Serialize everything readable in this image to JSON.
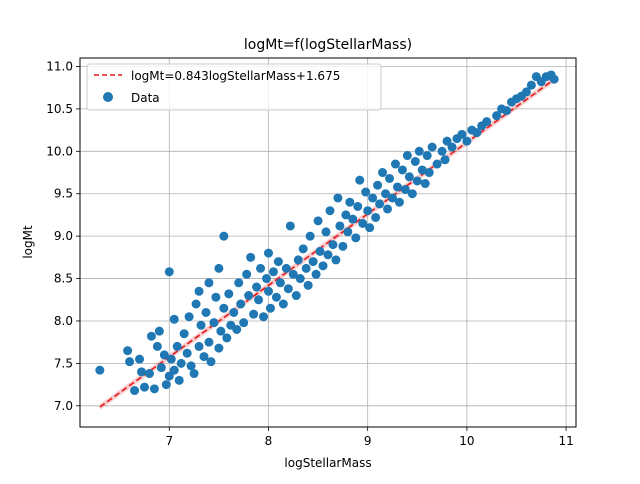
{
  "chart_data": {
    "type": "scatter",
    "title": "logMt=f(logStellarMass)",
    "xlabel": "logStellarMass",
    "ylabel": "logMt",
    "xlim": [
      6.1,
      11.1
    ],
    "ylim": [
      6.75,
      11.1
    ],
    "xticks": [
      "7",
      "8",
      "9",
      "10",
      "11"
    ],
    "yticks": [
      "7.0",
      "7.5",
      "8.0",
      "8.5",
      "9.0",
      "9.5",
      "10.0",
      "10.5",
      "11.0"
    ],
    "grid": true,
    "legend_position": "top-left",
    "fit": {
      "label": "logMt=0.843logStellarMass+1.675",
      "slope": 0.843,
      "intercept": 1.675,
      "x_range": [
        6.3,
        10.9
      ],
      "color": "#e41a1c",
      "style": "dashed"
    },
    "series": [
      {
        "name": "Data",
        "color": "#1f77b4",
        "points": [
          [
            6.3,
            7.42
          ],
          [
            6.58,
            7.65
          ],
          [
            6.6,
            7.52
          ],
          [
            6.65,
            7.18
          ],
          [
            6.7,
            7.55
          ],
          [
            6.72,
            7.4
          ],
          [
            6.75,
            7.22
          ],
          [
            6.8,
            7.38
          ],
          [
            6.82,
            7.82
          ],
          [
            6.85,
            7.2
          ],
          [
            6.88,
            7.7
          ],
          [
            6.9,
            7.88
          ],
          [
            6.92,
            7.45
          ],
          [
            6.95,
            7.6
          ],
          [
            6.97,
            7.25
          ],
          [
            7.0,
            8.58
          ],
          [
            7.0,
            7.35
          ],
          [
            7.02,
            7.55
          ],
          [
            7.05,
            7.42
          ],
          [
            7.05,
            8.02
          ],
          [
            7.08,
            7.7
          ],
          [
            7.1,
            7.3
          ],
          [
            7.12,
            7.5
          ],
          [
            7.15,
            7.85
          ],
          [
            7.18,
            7.62
          ],
          [
            7.2,
            8.05
          ],
          [
            7.22,
            7.47
          ],
          [
            7.25,
            7.38
          ],
          [
            7.27,
            8.2
          ],
          [
            7.3,
            7.7
          ],
          [
            7.3,
            8.35
          ],
          [
            7.32,
            7.95
          ],
          [
            7.35,
            7.58
          ],
          [
            7.37,
            8.1
          ],
          [
            7.4,
            7.75
          ],
          [
            7.4,
            8.45
          ],
          [
            7.42,
            7.52
          ],
          [
            7.45,
            7.98
          ],
          [
            7.47,
            8.28
          ],
          [
            7.5,
            7.68
          ],
          [
            7.5,
            8.62
          ],
          [
            7.52,
            7.88
          ],
          [
            7.55,
            8.15
          ],
          [
            7.55,
            9.0
          ],
          [
            7.58,
            7.8
          ],
          [
            7.6,
            8.32
          ],
          [
            7.62,
            7.95
          ],
          [
            7.65,
            8.1
          ],
          [
            7.68,
            7.9
          ],
          [
            7.7,
            8.45
          ],
          [
            7.72,
            8.2
          ],
          [
            7.75,
            7.98
          ],
          [
            7.78,
            8.55
          ],
          [
            7.8,
            8.3
          ],
          [
            7.82,
            8.75
          ],
          [
            7.85,
            8.08
          ],
          [
            7.88,
            8.4
          ],
          [
            7.9,
            8.25
          ],
          [
            7.92,
            8.62
          ],
          [
            7.95,
            8.05
          ],
          [
            7.98,
            8.5
          ],
          [
            8.0,
            8.8
          ],
          [
            8.0,
            8.35
          ],
          [
            8.02,
            8.15
          ],
          [
            8.05,
            8.58
          ],
          [
            8.08,
            8.28
          ],
          [
            8.1,
            8.7
          ],
          [
            8.12,
            8.45
          ],
          [
            8.15,
            8.2
          ],
          [
            8.18,
            8.62
          ],
          [
            8.2,
            8.38
          ],
          [
            8.22,
            9.12
          ],
          [
            8.25,
            8.55
          ],
          [
            8.28,
            8.3
          ],
          [
            8.3,
            8.72
          ],
          [
            8.32,
            8.5
          ],
          [
            8.35,
            8.85
          ],
          [
            8.38,
            8.62
          ],
          [
            8.4,
            8.42
          ],
          [
            8.42,
            9.0
          ],
          [
            8.45,
            8.7
          ],
          [
            8.48,
            8.55
          ],
          [
            8.5,
            9.18
          ],
          [
            8.52,
            8.82
          ],
          [
            8.55,
            8.65
          ],
          [
            8.58,
            9.05
          ],
          [
            8.6,
            8.78
          ],
          [
            8.62,
            9.3
          ],
          [
            8.65,
            8.9
          ],
          [
            8.68,
            8.72
          ],
          [
            8.7,
            9.45
          ],
          [
            8.72,
            9.12
          ],
          [
            8.75,
            8.88
          ],
          [
            8.78,
            9.25
          ],
          [
            8.8,
            9.05
          ],
          [
            8.82,
            9.4
          ],
          [
            8.85,
            9.2
          ],
          [
            8.88,
            8.98
          ],
          [
            8.9,
            9.35
          ],
          [
            8.92,
            9.66
          ],
          [
            8.95,
            9.15
          ],
          [
            8.98,
            9.52
          ],
          [
            9.0,
            9.3
          ],
          [
            9.02,
            9.1
          ],
          [
            9.05,
            9.45
          ],
          [
            9.08,
            9.22
          ],
          [
            9.1,
            9.6
          ],
          [
            9.12,
            9.38
          ],
          [
            9.15,
            9.75
          ],
          [
            9.18,
            9.5
          ],
          [
            9.2,
            9.32
          ],
          [
            9.22,
            9.68
          ],
          [
            9.25,
            9.45
          ],
          [
            9.28,
            9.85
          ],
          [
            9.3,
            9.58
          ],
          [
            9.32,
            9.4
          ],
          [
            9.35,
            9.78
          ],
          [
            9.38,
            9.55
          ],
          [
            9.4,
            9.95
          ],
          [
            9.42,
            9.7
          ],
          [
            9.45,
            9.5
          ],
          [
            9.48,
            9.88
          ],
          [
            9.5,
            9.65
          ],
          [
            9.52,
            10.0
          ],
          [
            9.55,
            9.78
          ],
          [
            9.58,
            9.62
          ],
          [
            9.6,
            9.95
          ],
          [
            9.62,
            9.75
          ],
          [
            9.65,
            10.05
          ],
          [
            9.7,
            9.85
          ],
          [
            9.75,
            10.0
          ],
          [
            9.78,
            9.9
          ],
          [
            9.8,
            10.12
          ],
          [
            9.85,
            10.05
          ],
          [
            9.9,
            10.15
          ],
          [
            9.95,
            10.2
          ],
          [
            10.0,
            10.12
          ],
          [
            10.05,
            10.25
          ],
          [
            10.1,
            10.22
          ],
          [
            10.15,
            10.3
          ],
          [
            10.2,
            10.35
          ],
          [
            10.3,
            10.42
          ],
          [
            10.35,
            10.5
          ],
          [
            10.4,
            10.48
          ],
          [
            10.45,
            10.58
          ],
          [
            10.5,
            10.62
          ],
          [
            10.55,
            10.65
          ],
          [
            10.6,
            10.7
          ],
          [
            10.65,
            10.78
          ],
          [
            10.7,
            10.88
          ],
          [
            10.75,
            10.82
          ],
          [
            10.8,
            10.88
          ],
          [
            10.85,
            10.9
          ],
          [
            10.88,
            10.85
          ]
        ]
      }
    ]
  }
}
